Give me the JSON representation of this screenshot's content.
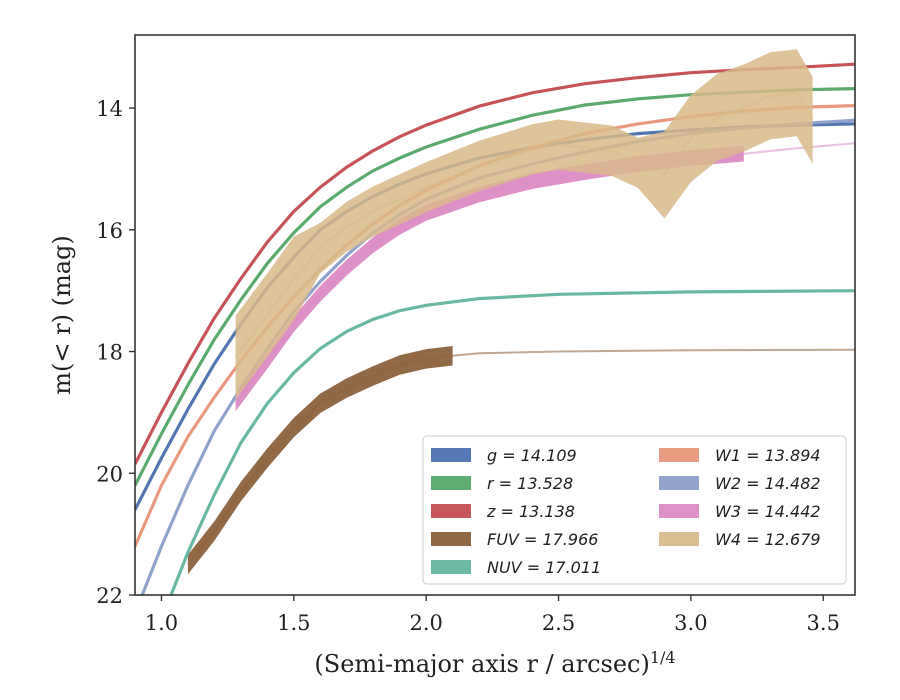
{
  "chart_data": {
    "type": "line",
    "xlabel": "(Semi-major axis r / arcsec)",
    "xlabel_sup": "1/4",
    "ylabel": "m(< r) (mag)",
    "xlim": [
      0.9,
      3.62
    ],
    "ylim": [
      22.0,
      12.8
    ],
    "y_inverted": true,
    "xticks": [
      1.0,
      1.5,
      2.0,
      2.5,
      3.0,
      3.5
    ],
    "xtick_labels": [
      "1.0",
      "1.5",
      "2.0",
      "2.5",
      "3.0",
      "3.5"
    ],
    "yticks": [
      14,
      16,
      18,
      20,
      22
    ],
    "ytick_labels": [
      "14",
      "16",
      "18",
      "20",
      "22"
    ],
    "grid": false,
    "legend_position": "lower-right",
    "legend_columns": 2,
    "series": [
      {
        "name": "g = 14.109",
        "label_var": "g",
        "label_value": "14.109",
        "color": "#4c72b0",
        "kind": "line",
        "x": [
          0.9,
          1.0,
          1.1,
          1.2,
          1.3,
          1.4,
          1.5,
          1.6,
          1.7,
          1.8,
          1.9,
          2.0,
          2.2,
          2.4,
          2.6,
          2.8,
          3.0,
          3.2,
          3.4,
          3.62
        ],
        "y": [
          20.6,
          19.75,
          18.95,
          18.2,
          17.55,
          16.95,
          16.45,
          16.0,
          15.7,
          15.45,
          15.25,
          15.08,
          14.82,
          14.65,
          14.52,
          14.42,
          14.36,
          14.31,
          14.28,
          14.26
        ]
      },
      {
        "name": "r = 13.528",
        "label_var": "r",
        "label_value": "13.528",
        "color": "#55a868",
        "kind": "line",
        "x": [
          0.9,
          1.0,
          1.1,
          1.2,
          1.3,
          1.4,
          1.5,
          1.6,
          1.7,
          1.8,
          1.9,
          2.0,
          2.2,
          2.4,
          2.6,
          2.8,
          3.0,
          3.2,
          3.4,
          3.62
        ],
        "y": [
          20.2,
          19.35,
          18.55,
          17.8,
          17.15,
          16.55,
          16.05,
          15.62,
          15.3,
          15.03,
          14.82,
          14.64,
          14.35,
          14.12,
          13.95,
          13.85,
          13.78,
          13.74,
          13.7,
          13.68
        ]
      },
      {
        "name": "z = 13.138",
        "label_var": "z",
        "label_value": "13.138",
        "color": "#c44e52",
        "kind": "line",
        "x": [
          0.9,
          1.0,
          1.1,
          1.2,
          1.3,
          1.4,
          1.5,
          1.6,
          1.7,
          1.8,
          1.9,
          2.0,
          2.2,
          2.4,
          2.6,
          2.8,
          3.0,
          3.2,
          3.4,
          3.62
        ],
        "y": [
          19.85,
          19.0,
          18.2,
          17.45,
          16.8,
          16.2,
          15.7,
          15.3,
          14.97,
          14.7,
          14.47,
          14.28,
          13.97,
          13.75,
          13.6,
          13.5,
          13.42,
          13.37,
          13.33,
          13.28
        ]
      },
      {
        "name": "FUV = 17.966",
        "label_var": "FUV",
        "label_value": "17.966",
        "color": "#8c613c",
        "kind": "band",
        "x": [
          1.1,
          1.2,
          1.3,
          1.4,
          1.5,
          1.6,
          1.7,
          1.8,
          1.9,
          2.0,
          2.1,
          2.2,
          2.5,
          3.0,
          3.62
        ],
        "y": [
          21.5,
          20.95,
          20.3,
          19.75,
          19.25,
          18.85,
          18.6,
          18.4,
          18.22,
          18.12,
          18.07,
          18.03,
          18.0,
          17.98,
          17.97
        ],
        "band_until": 2.18
      },
      {
        "name": "NUV = 17.011",
        "label_var": "NUV",
        "label_value": "17.011",
        "color": "#64b5a0",
        "kind": "line",
        "x": [
          1.0,
          1.1,
          1.2,
          1.3,
          1.4,
          1.5,
          1.6,
          1.7,
          1.8,
          1.9,
          2.0,
          2.2,
          2.5,
          3.0,
          3.62
        ],
        "y": [
          22.4,
          21.3,
          20.35,
          19.5,
          18.85,
          18.35,
          17.95,
          17.67,
          17.47,
          17.33,
          17.24,
          17.13,
          17.06,
          17.02,
          17.0
        ]
      },
      {
        "name": "W1 = 13.894",
        "label_var": "W1",
        "label_value": "13.894",
        "color": "#e8967a",
        "kind": "line",
        "x": [
          0.9,
          1.0,
          1.1,
          1.2,
          1.3,
          1.4,
          1.5,
          1.6,
          1.7,
          1.8,
          1.9,
          2.0,
          2.2,
          2.4,
          2.6,
          2.8,
          3.0,
          3.2,
          3.4,
          3.62
        ],
        "y": [
          21.2,
          20.2,
          19.4,
          18.75,
          18.15,
          17.6,
          17.1,
          16.65,
          16.25,
          15.9,
          15.6,
          15.35,
          14.95,
          14.65,
          14.42,
          14.26,
          14.14,
          14.05,
          13.99,
          13.96
        ]
      },
      {
        "name": "W2 = 14.482",
        "label_var": "W2",
        "label_value": "14.482",
        "color": "#8c9fc9",
        "kind": "line",
        "x": [
          0.9,
          1.0,
          1.1,
          1.2,
          1.3,
          1.4,
          1.5,
          1.6,
          1.7,
          1.8,
          1.9,
          2.0,
          2.2,
          2.4,
          2.6,
          2.8,
          3.0,
          3.2,
          3.4,
          3.62
        ],
        "y": [
          22.3,
          21.2,
          20.2,
          19.3,
          18.6,
          17.95,
          17.35,
          16.85,
          16.42,
          16.05,
          15.75,
          15.5,
          15.15,
          14.92,
          14.72,
          14.55,
          14.42,
          14.33,
          14.26,
          14.2
        ]
      },
      {
        "name": "W3 = 14.442",
        "label_var": "W3",
        "label_value": "14.442",
        "color": "#db8bc4",
        "kind": "band",
        "x": [
          1.28,
          1.4,
          1.5,
          1.6,
          1.7,
          1.8,
          1.9,
          2.0,
          2.2,
          2.4,
          2.6,
          2.8,
          3.0,
          3.2,
          3.4,
          3.62
        ],
        "y": [
          18.85,
          18.15,
          17.55,
          17.05,
          16.62,
          16.25,
          15.95,
          15.72,
          15.42,
          15.2,
          15.05,
          14.92,
          14.82,
          14.75,
          14.66,
          14.58
        ],
        "band_until": 3.35
      },
      {
        "name": "W4 = 12.679",
        "label_var": "W4",
        "label_value": "12.679",
        "color": "#d8b98a",
        "kind": "band",
        "x": [
          1.28,
          1.4,
          1.5,
          1.6,
          1.7,
          1.8,
          1.9,
          2.0,
          2.2,
          2.4,
          2.5,
          2.6,
          2.7,
          2.8,
          2.9,
          3.0,
          3.1,
          3.2,
          3.3,
          3.4,
          3.46
        ],
        "y": [
          18.1,
          17.4,
          16.8,
          16.3,
          15.95,
          15.7,
          15.5,
          15.3,
          14.95,
          14.68,
          14.6,
          14.65,
          14.7,
          14.9,
          15.1,
          14.5,
          14.15,
          14.0,
          13.8,
          13.75,
          14.2
        ],
        "band_until": 3.46
      }
    ]
  }
}
